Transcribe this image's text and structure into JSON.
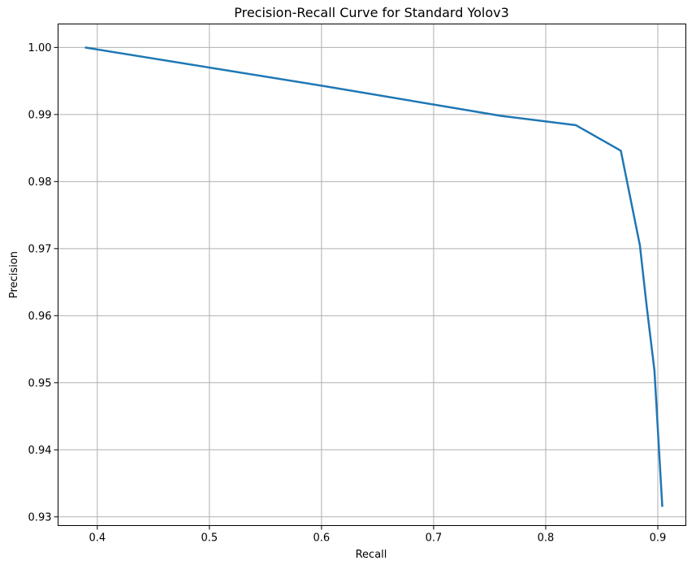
{
  "chart_data": {
    "type": "line",
    "title": "Precision-Recall Curve for Standard Yolov3",
    "xlabel": "Recall",
    "ylabel": "Precision",
    "xlim": [
      0.365,
      0.925
    ],
    "ylim": [
      0.9287,
      1.0035
    ],
    "xticks": [
      0.4,
      0.5,
      0.6,
      0.7,
      0.8,
      0.9
    ],
    "xtick_labels": [
      "0.4",
      "0.5",
      "0.6",
      "0.7",
      "0.8",
      "0.9"
    ],
    "yticks": [
      0.93,
      0.94,
      0.95,
      0.96,
      0.97,
      0.98,
      0.99,
      1.0
    ],
    "ytick_labels": [
      "0.93",
      "0.94",
      "0.95",
      "0.96",
      "0.97",
      "0.98",
      "0.99",
      "1.00"
    ],
    "grid": true,
    "series": [
      {
        "color": "#1f77b4",
        "x": [
          0.389,
          0.6,
          0.76,
          0.827,
          0.867,
          0.884,
          0.89,
          0.897,
          0.904
        ],
        "y": [
          1.0,
          0.9943,
          0.9898,
          0.9884,
          0.9846,
          0.9705,
          0.9615,
          0.9518,
          0.9315
        ]
      }
    ]
  }
}
